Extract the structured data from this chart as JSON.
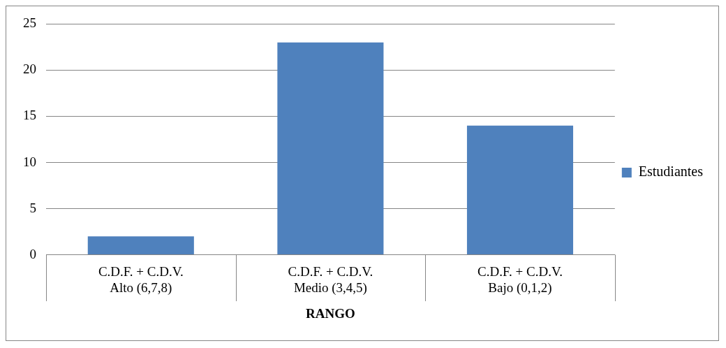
{
  "chart_data": {
    "type": "bar",
    "xlabel": "RANGO",
    "categories": [
      "C.D.F. + C.D.V.\nAlto (6,7,8)",
      "C.D.F. + C.D.V.\nMedio (3,4,5)",
      "C.D.F. + C.D.V.\nBajo (0,1,2)"
    ],
    "series": [
      {
        "name": "Estudiantes",
        "color": "#4f81bd",
        "values": [
          2,
          23,
          14
        ]
      }
    ],
    "ylim": [
      0,
      25
    ],
    "yticks": [
      0,
      5,
      10,
      15,
      20,
      25
    ],
    "grid": "y",
    "legend": "right"
  }
}
